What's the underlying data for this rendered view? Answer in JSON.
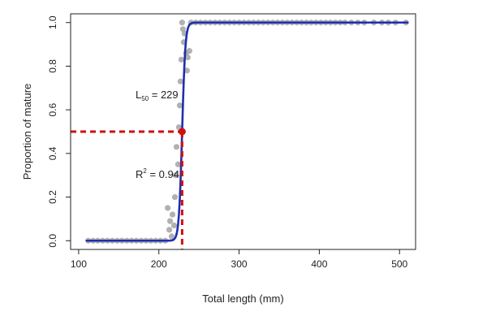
{
  "chart_data": {
    "type": "scatter",
    "xlabel": "Total length (mm)",
    "ylabel": "Proportion of mature",
    "xlim": [
      90,
      520
    ],
    "ylim": [
      -0.04,
      1.04
    ],
    "xticks": [
      100,
      200,
      300,
      400,
      500
    ],
    "yticks": [
      0.0,
      0.2,
      0.4,
      0.6,
      0.8,
      1.0
    ],
    "ytick_labels": [
      "0.0",
      "0.2",
      "0.4",
      "0.6",
      "0.8",
      "1.0"
    ],
    "grid": false,
    "series": [
      {
        "kind": "points",
        "color": "#a9a9a9",
        "points": [
          [
            112,
            0.0
          ],
          [
            118,
            0.0
          ],
          [
            124,
            0.0
          ],
          [
            130,
            0.0
          ],
          [
            136,
            0.0
          ],
          [
            142,
            0.0
          ],
          [
            148,
            0.0
          ],
          [
            154,
            0.0
          ],
          [
            160,
            0.0
          ],
          [
            166,
            0.0
          ],
          [
            172,
            0.0
          ],
          [
            178,
            0.0
          ],
          [
            184,
            0.0
          ],
          [
            190,
            0.0
          ],
          [
            196,
            0.0
          ],
          [
            202,
            0.0
          ],
          [
            208,
            0.0
          ],
          [
            211,
            0.15
          ],
          [
            213,
            0.05
          ],
          [
            214,
            0.09
          ],
          [
            216,
            0.02
          ],
          [
            217,
            0.12
          ],
          [
            219,
            0.07
          ],
          [
            220,
            0.2
          ],
          [
            221,
            0.3
          ],
          [
            222,
            0.43
          ],
          [
            224,
            0.35
          ],
          [
            225,
            0.52
          ],
          [
            226,
            0.62
          ],
          [
            227,
            0.73
          ],
          [
            228,
            0.83
          ],
          [
            229,
            1.0
          ],
          [
            230,
            0.97
          ],
          [
            231,
            0.91
          ],
          [
            232,
            0.95
          ],
          [
            234,
            0.86
          ],
          [
            235,
            0.78
          ],
          [
            236,
            0.84
          ],
          [
            238,
            0.87
          ],
          [
            240,
            1.0
          ],
          [
            246,
            1.0
          ],
          [
            252,
            1.0
          ],
          [
            258,
            1.0
          ],
          [
            264,
            1.0
          ],
          [
            270,
            1.0
          ],
          [
            276,
            1.0
          ],
          [
            282,
            1.0
          ],
          [
            288,
            1.0
          ],
          [
            294,
            1.0
          ],
          [
            300,
            1.0
          ],
          [
            306,
            1.0
          ],
          [
            312,
            1.0
          ],
          [
            318,
            1.0
          ],
          [
            324,
            1.0
          ],
          [
            330,
            1.0
          ],
          [
            336,
            1.0
          ],
          [
            342,
            1.0
          ],
          [
            348,
            1.0
          ],
          [
            354,
            1.0
          ],
          [
            360,
            1.0
          ],
          [
            366,
            1.0
          ],
          [
            372,
            1.0
          ],
          [
            378,
            1.0
          ],
          [
            384,
            1.0
          ],
          [
            390,
            1.0
          ],
          [
            396,
            1.0
          ],
          [
            402,
            1.0
          ],
          [
            408,
            1.0
          ],
          [
            414,
            1.0
          ],
          [
            420,
            1.0
          ],
          [
            426,
            1.0
          ],
          [
            432,
            1.0
          ],
          [
            440,
            1.0
          ],
          [
            448,
            1.0
          ],
          [
            456,
            1.0
          ],
          [
            468,
            1.0
          ],
          [
            478,
            1.0
          ],
          [
            486,
            1.0
          ],
          [
            495,
            1.0
          ],
          [
            508,
            1.0
          ]
        ]
      },
      {
        "kind": "curve",
        "color": "#1f2fb0",
        "model": "logistic",
        "x_range": [
          110,
          510
        ],
        "L50": 229,
        "slope": 0.5
      }
    ],
    "reference": {
      "x": 229,
      "y": 0.5,
      "color": "#cc1111"
    },
    "annotations": {
      "l50_prefix": "L",
      "l50_sub": "50",
      "l50_value": " = 229",
      "r2_prefix": "R",
      "r2_sup": "2",
      "r2_value": " = 0.94"
    }
  }
}
